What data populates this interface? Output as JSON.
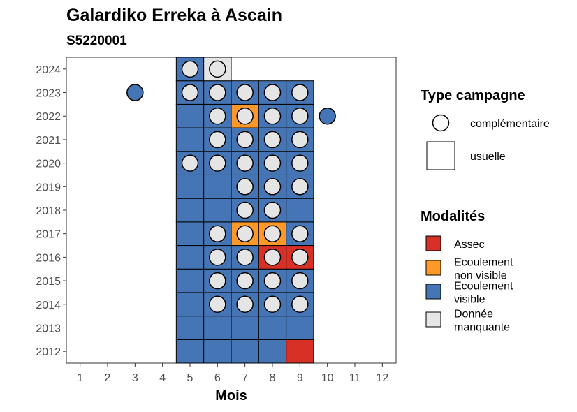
{
  "chart_data": {
    "type": "heatmap",
    "title": "Galardiko Erreka à Ascain",
    "subtitle": "S5220001",
    "xlabel": "Mois",
    "ylabel": "",
    "x_ticks": [
      "1",
      "2",
      "3",
      "4",
      "5",
      "6",
      "7",
      "8",
      "9",
      "10",
      "11",
      "12"
    ],
    "y_ticks": [
      "2012",
      "2013",
      "2014",
      "2015",
      "2016",
      "2017",
      "2018",
      "2019",
      "2020",
      "2021",
      "2022",
      "2023",
      "2024"
    ],
    "xlim": [
      0.5,
      12.5
    ],
    "ylim": [
      2011.5,
      2024.5
    ],
    "colors": {
      "Assec": "#d73027",
      "Ecoulement non visible": "#fe9929",
      "Ecoulement visible": "#4575b4",
      "Donnée manquante": "#e5e5e5"
    },
    "legend_shape": {
      "title": "Type campagne",
      "entries": [
        {
          "shape": "circle",
          "label": "complémentaire"
        },
        {
          "shape": "square",
          "label": "usuelle"
        }
      ]
    },
    "legend_color": {
      "title": "Modalités",
      "entries": [
        {
          "key": "Assec",
          "lines": [
            "Assec"
          ]
        },
        {
          "key": "Ecoulement non visible",
          "lines": [
            "Ecoulement",
            "non visible"
          ]
        },
        {
          "key": "Ecoulement visible",
          "lines": [
            "Ecoulement",
            "visible"
          ]
        },
        {
          "key": "Donnée manquante",
          "lines": [
            "Donnée",
            "manquante"
          ]
        }
      ]
    },
    "tiles": [
      {
        "year": 2012,
        "month": 5,
        "modalite": "Ecoulement visible"
      },
      {
        "year": 2012,
        "month": 6,
        "modalite": "Ecoulement visible"
      },
      {
        "year": 2012,
        "month": 7,
        "modalite": "Ecoulement visible"
      },
      {
        "year": 2012,
        "month": 8,
        "modalite": "Ecoulement visible"
      },
      {
        "year": 2012,
        "month": 9,
        "modalite": "Assec"
      },
      {
        "year": 2013,
        "month": 5,
        "modalite": "Ecoulement visible"
      },
      {
        "year": 2013,
        "month": 6,
        "modalite": "Ecoulement visible"
      },
      {
        "year": 2013,
        "month": 7,
        "modalite": "Ecoulement visible"
      },
      {
        "year": 2013,
        "month": 8,
        "modalite": "Ecoulement visible"
      },
      {
        "year": 2013,
        "month": 9,
        "modalite": "Ecoulement visible"
      },
      {
        "year": 2014,
        "month": 5,
        "modalite": "Ecoulement visible"
      },
      {
        "year": 2014,
        "month": 6,
        "modalite": "Ecoulement visible"
      },
      {
        "year": 2014,
        "month": 7,
        "modalite": "Ecoulement visible"
      },
      {
        "year": 2014,
        "month": 8,
        "modalite": "Ecoulement visible"
      },
      {
        "year": 2014,
        "month": 9,
        "modalite": "Ecoulement visible"
      },
      {
        "year": 2015,
        "month": 5,
        "modalite": "Ecoulement visible"
      },
      {
        "year": 2015,
        "month": 6,
        "modalite": "Ecoulement visible"
      },
      {
        "year": 2015,
        "month": 7,
        "modalite": "Ecoulement visible"
      },
      {
        "year": 2015,
        "month": 8,
        "modalite": "Ecoulement visible"
      },
      {
        "year": 2015,
        "month": 9,
        "modalite": "Ecoulement visible"
      },
      {
        "year": 2016,
        "month": 5,
        "modalite": "Ecoulement visible"
      },
      {
        "year": 2016,
        "month": 6,
        "modalite": "Ecoulement visible"
      },
      {
        "year": 2016,
        "month": 7,
        "modalite": "Ecoulement visible"
      },
      {
        "year": 2016,
        "month": 8,
        "modalite": "Assec"
      },
      {
        "year": 2016,
        "month": 9,
        "modalite": "Assec"
      },
      {
        "year": 2017,
        "month": 5,
        "modalite": "Ecoulement visible"
      },
      {
        "year": 2017,
        "month": 6,
        "modalite": "Ecoulement visible"
      },
      {
        "year": 2017,
        "month": 7,
        "modalite": "Ecoulement non visible"
      },
      {
        "year": 2017,
        "month": 8,
        "modalite": "Ecoulement non visible"
      },
      {
        "year": 2017,
        "month": 9,
        "modalite": "Ecoulement visible"
      },
      {
        "year": 2018,
        "month": 5,
        "modalite": "Ecoulement visible"
      },
      {
        "year": 2018,
        "month": 6,
        "modalite": "Ecoulement visible"
      },
      {
        "year": 2018,
        "month": 7,
        "modalite": "Ecoulement visible"
      },
      {
        "year": 2018,
        "month": 8,
        "modalite": "Ecoulement visible"
      },
      {
        "year": 2018,
        "month": 9,
        "modalite": "Ecoulement visible"
      },
      {
        "year": 2019,
        "month": 5,
        "modalite": "Ecoulement visible"
      },
      {
        "year": 2019,
        "month": 6,
        "modalite": "Ecoulement visible"
      },
      {
        "year": 2019,
        "month": 7,
        "modalite": "Ecoulement visible"
      },
      {
        "year": 2019,
        "month": 8,
        "modalite": "Ecoulement visible"
      },
      {
        "year": 2019,
        "month": 9,
        "modalite": "Ecoulement visible"
      },
      {
        "year": 2020,
        "month": 5,
        "modalite": "Ecoulement visible"
      },
      {
        "year": 2020,
        "month": 6,
        "modalite": "Ecoulement visible"
      },
      {
        "year": 2020,
        "month": 7,
        "modalite": "Ecoulement visible"
      },
      {
        "year": 2020,
        "month": 8,
        "modalite": "Ecoulement visible"
      },
      {
        "year": 2020,
        "month": 9,
        "modalite": "Ecoulement visible"
      },
      {
        "year": 2021,
        "month": 5,
        "modalite": "Ecoulement visible"
      },
      {
        "year": 2021,
        "month": 6,
        "modalite": "Ecoulement visible"
      },
      {
        "year": 2021,
        "month": 7,
        "modalite": "Ecoulement visible"
      },
      {
        "year": 2021,
        "month": 8,
        "modalite": "Ecoulement visible"
      },
      {
        "year": 2021,
        "month": 9,
        "modalite": "Ecoulement visible"
      },
      {
        "year": 2022,
        "month": 5,
        "modalite": "Ecoulement visible"
      },
      {
        "year": 2022,
        "month": 6,
        "modalite": "Ecoulement visible"
      },
      {
        "year": 2022,
        "month": 7,
        "modalite": "Ecoulement non visible"
      },
      {
        "year": 2022,
        "month": 8,
        "modalite": "Ecoulement visible"
      },
      {
        "year": 2022,
        "month": 9,
        "modalite": "Ecoulement visible"
      },
      {
        "year": 2023,
        "month": 5,
        "modalite": "Ecoulement visible"
      },
      {
        "year": 2023,
        "month": 6,
        "modalite": "Ecoulement visible"
      },
      {
        "year": 2023,
        "month": 7,
        "modalite": "Ecoulement visible"
      },
      {
        "year": 2023,
        "month": 8,
        "modalite": "Ecoulement visible"
      },
      {
        "year": 2023,
        "month": 9,
        "modalite": "Ecoulement visible"
      },
      {
        "year": 2024,
        "month": 5,
        "modalite": "Ecoulement visible"
      },
      {
        "year": 2024,
        "month": 6,
        "modalite": "Donnée manquante"
      }
    ],
    "points": [
      {
        "year": 2014,
        "month": 6,
        "modalite": "Donnée manquante"
      },
      {
        "year": 2014,
        "month": 7,
        "modalite": "Donnée manquante"
      },
      {
        "year": 2014,
        "month": 8,
        "modalite": "Donnée manquante"
      },
      {
        "year": 2014,
        "month": 9,
        "modalite": "Donnée manquante"
      },
      {
        "year": 2015,
        "month": 6,
        "modalite": "Donnée manquante"
      },
      {
        "year": 2015,
        "month": 7,
        "modalite": "Donnée manquante"
      },
      {
        "year": 2015,
        "month": 8,
        "modalite": "Donnée manquante"
      },
      {
        "year": 2015,
        "month": 9,
        "modalite": "Donnée manquante"
      },
      {
        "year": 2016,
        "month": 6,
        "modalite": "Donnée manquante"
      },
      {
        "year": 2016,
        "month": 7,
        "modalite": "Donnée manquante"
      },
      {
        "year": 2016,
        "month": 8,
        "modalite": "Donnée manquante"
      },
      {
        "year": 2016,
        "month": 9,
        "modalite": "Donnée manquante"
      },
      {
        "year": 2017,
        "month": 6,
        "modalite": "Donnée manquante"
      },
      {
        "year": 2017,
        "month": 7,
        "modalite": "Donnée manquante"
      },
      {
        "year": 2017,
        "month": 8,
        "modalite": "Donnée manquante"
      },
      {
        "year": 2017,
        "month": 9,
        "modalite": "Donnée manquante"
      },
      {
        "year": 2018,
        "month": 7,
        "modalite": "Donnée manquante"
      },
      {
        "year": 2018,
        "month": 8,
        "modalite": "Donnée manquante"
      },
      {
        "year": 2019,
        "month": 7,
        "modalite": "Donnée manquante"
      },
      {
        "year": 2019,
        "month": 8,
        "modalite": "Donnée manquante"
      },
      {
        "year": 2019,
        "month": 9,
        "modalite": "Donnée manquante"
      },
      {
        "year": 2020,
        "month": 5,
        "modalite": "Donnée manquante"
      },
      {
        "year": 2020,
        "month": 6,
        "modalite": "Donnée manquante"
      },
      {
        "year": 2020,
        "month": 7,
        "modalite": "Donnée manquante"
      },
      {
        "year": 2020,
        "month": 8,
        "modalite": "Donnée manquante"
      },
      {
        "year": 2020,
        "month": 9,
        "modalite": "Donnée manquante"
      },
      {
        "year": 2021,
        "month": 6,
        "modalite": "Donnée manquante"
      },
      {
        "year": 2021,
        "month": 7,
        "modalite": "Donnée manquante"
      },
      {
        "year": 2021,
        "month": 8,
        "modalite": "Donnée manquante"
      },
      {
        "year": 2021,
        "month": 9,
        "modalite": "Donnée manquante"
      },
      {
        "year": 2022,
        "month": 6,
        "modalite": "Donnée manquante"
      },
      {
        "year": 2022,
        "month": 7,
        "modalite": "Donnée manquante"
      },
      {
        "year": 2022,
        "month": 8,
        "modalite": "Donnée manquante"
      },
      {
        "year": 2022,
        "month": 9,
        "modalite": "Donnée manquante"
      },
      {
        "year": 2022,
        "month": 10,
        "modalite": "Ecoulement visible"
      },
      {
        "year": 2023,
        "month": 3,
        "modalite": "Ecoulement visible"
      },
      {
        "year": 2023,
        "month": 5,
        "modalite": "Donnée manquante"
      },
      {
        "year": 2023,
        "month": 6,
        "modalite": "Donnée manquante"
      },
      {
        "year": 2023,
        "month": 7,
        "modalite": "Donnée manquante"
      },
      {
        "year": 2023,
        "month": 8,
        "modalite": "Donnée manquante"
      },
      {
        "year": 2023,
        "month": 9,
        "modalite": "Donnée manquante"
      },
      {
        "year": 2024,
        "month": 5,
        "modalite": "Donnée manquante"
      },
      {
        "year": 2024,
        "month": 6,
        "modalite": "Donnée manquante"
      }
    ]
  }
}
